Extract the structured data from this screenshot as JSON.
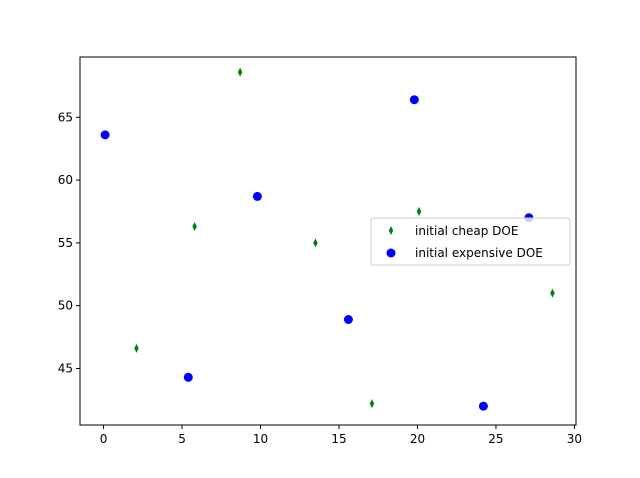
{
  "chart_data": {
    "type": "scatter",
    "title": "",
    "xlabel": "",
    "ylabel": "",
    "xlim": [
      -1.5,
      30.1
    ],
    "ylim": [
      40.5,
      69.8
    ],
    "xticks": [
      0,
      5,
      10,
      15,
      20,
      25,
      30
    ],
    "yticks": [
      45,
      50,
      55,
      60,
      65
    ],
    "grid": false,
    "legend_position": "center-right",
    "series": [
      {
        "name": "initial cheap DOE",
        "marker": "thin-diamond",
        "color": "#008000",
        "points": [
          {
            "x": 2.1,
            "y": 46.6
          },
          {
            "x": 5.8,
            "y": 56.3
          },
          {
            "x": 8.7,
            "y": 68.6
          },
          {
            "x": 13.5,
            "y": 55.0
          },
          {
            "x": 17.1,
            "y": 42.2
          },
          {
            "x": 20.1,
            "y": 57.5
          },
          {
            "x": 28.6,
            "y": 51.0
          }
        ]
      },
      {
        "name": "initial expensive DOE",
        "marker": "circle",
        "color": "#0000ff",
        "points": [
          {
            "x": 0.1,
            "y": 63.6
          },
          {
            "x": 5.4,
            "y": 44.3
          },
          {
            "x": 9.8,
            "y": 58.7
          },
          {
            "x": 15.6,
            "y": 48.9
          },
          {
            "x": 19.8,
            "y": 66.4
          },
          {
            "x": 24.2,
            "y": 42.0
          },
          {
            "x": 27.1,
            "y": 57.0
          }
        ]
      }
    ]
  }
}
